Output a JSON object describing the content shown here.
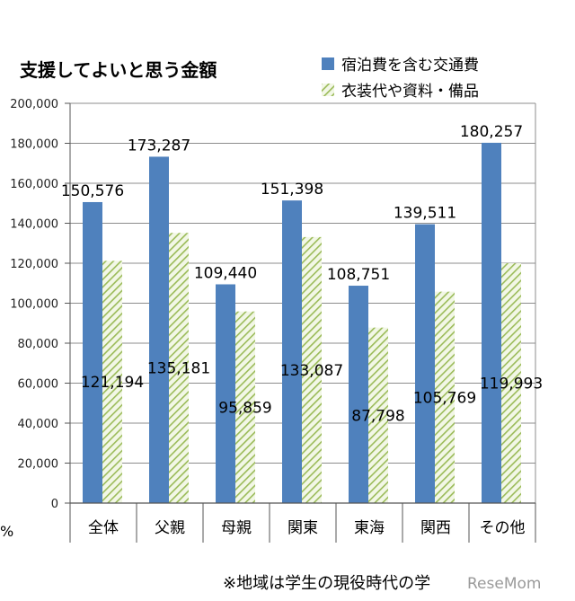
{
  "chart_data": {
    "type": "bar",
    "title": "支援してよいと思う金額",
    "categories": [
      "全体",
      "父親",
      "母親",
      "関東",
      "東海",
      "関西",
      "その他"
    ],
    "series": [
      {
        "name": "宿泊費を含む交通費",
        "color": "#4F81BD",
        "values": [
          150576,
          173287,
          109440,
          151398,
          108751,
          139511,
          180257
        ],
        "labels": [
          "150,576",
          "173,287",
          "109,440",
          "151,398",
          "108,751",
          "139,511",
          "180,257"
        ]
      },
      {
        "name": "衣装代や資料・備品",
        "color": "#9BBB59",
        "pattern": "diagonal-hatch",
        "values": [
          121194,
          135181,
          95859,
          133087,
          87798,
          105769,
          119993
        ],
        "labels": [
          "121,194",
          "135,181",
          "95,859",
          "133,087",
          "87,798",
          "105,769",
          "119,993"
        ]
      }
    ],
    "ylim": [
      0,
      200000
    ],
    "yticks": [
      0,
      20000,
      40000,
      60000,
      80000,
      100000,
      120000,
      140000,
      160000,
      180000,
      200000
    ],
    "ytick_labels": [
      "0",
      "20,000",
      "40,000",
      "60,000",
      "80,000",
      "100,000",
      "120,000",
      "140,000",
      "160,000",
      "180,000",
      "200,000"
    ],
    "grid": true,
    "legend_position": "top-right"
  },
  "footnote": "※地域は学生の現役時代の学",
  "left_edge_text": "%",
  "watermark": "ReseMom"
}
